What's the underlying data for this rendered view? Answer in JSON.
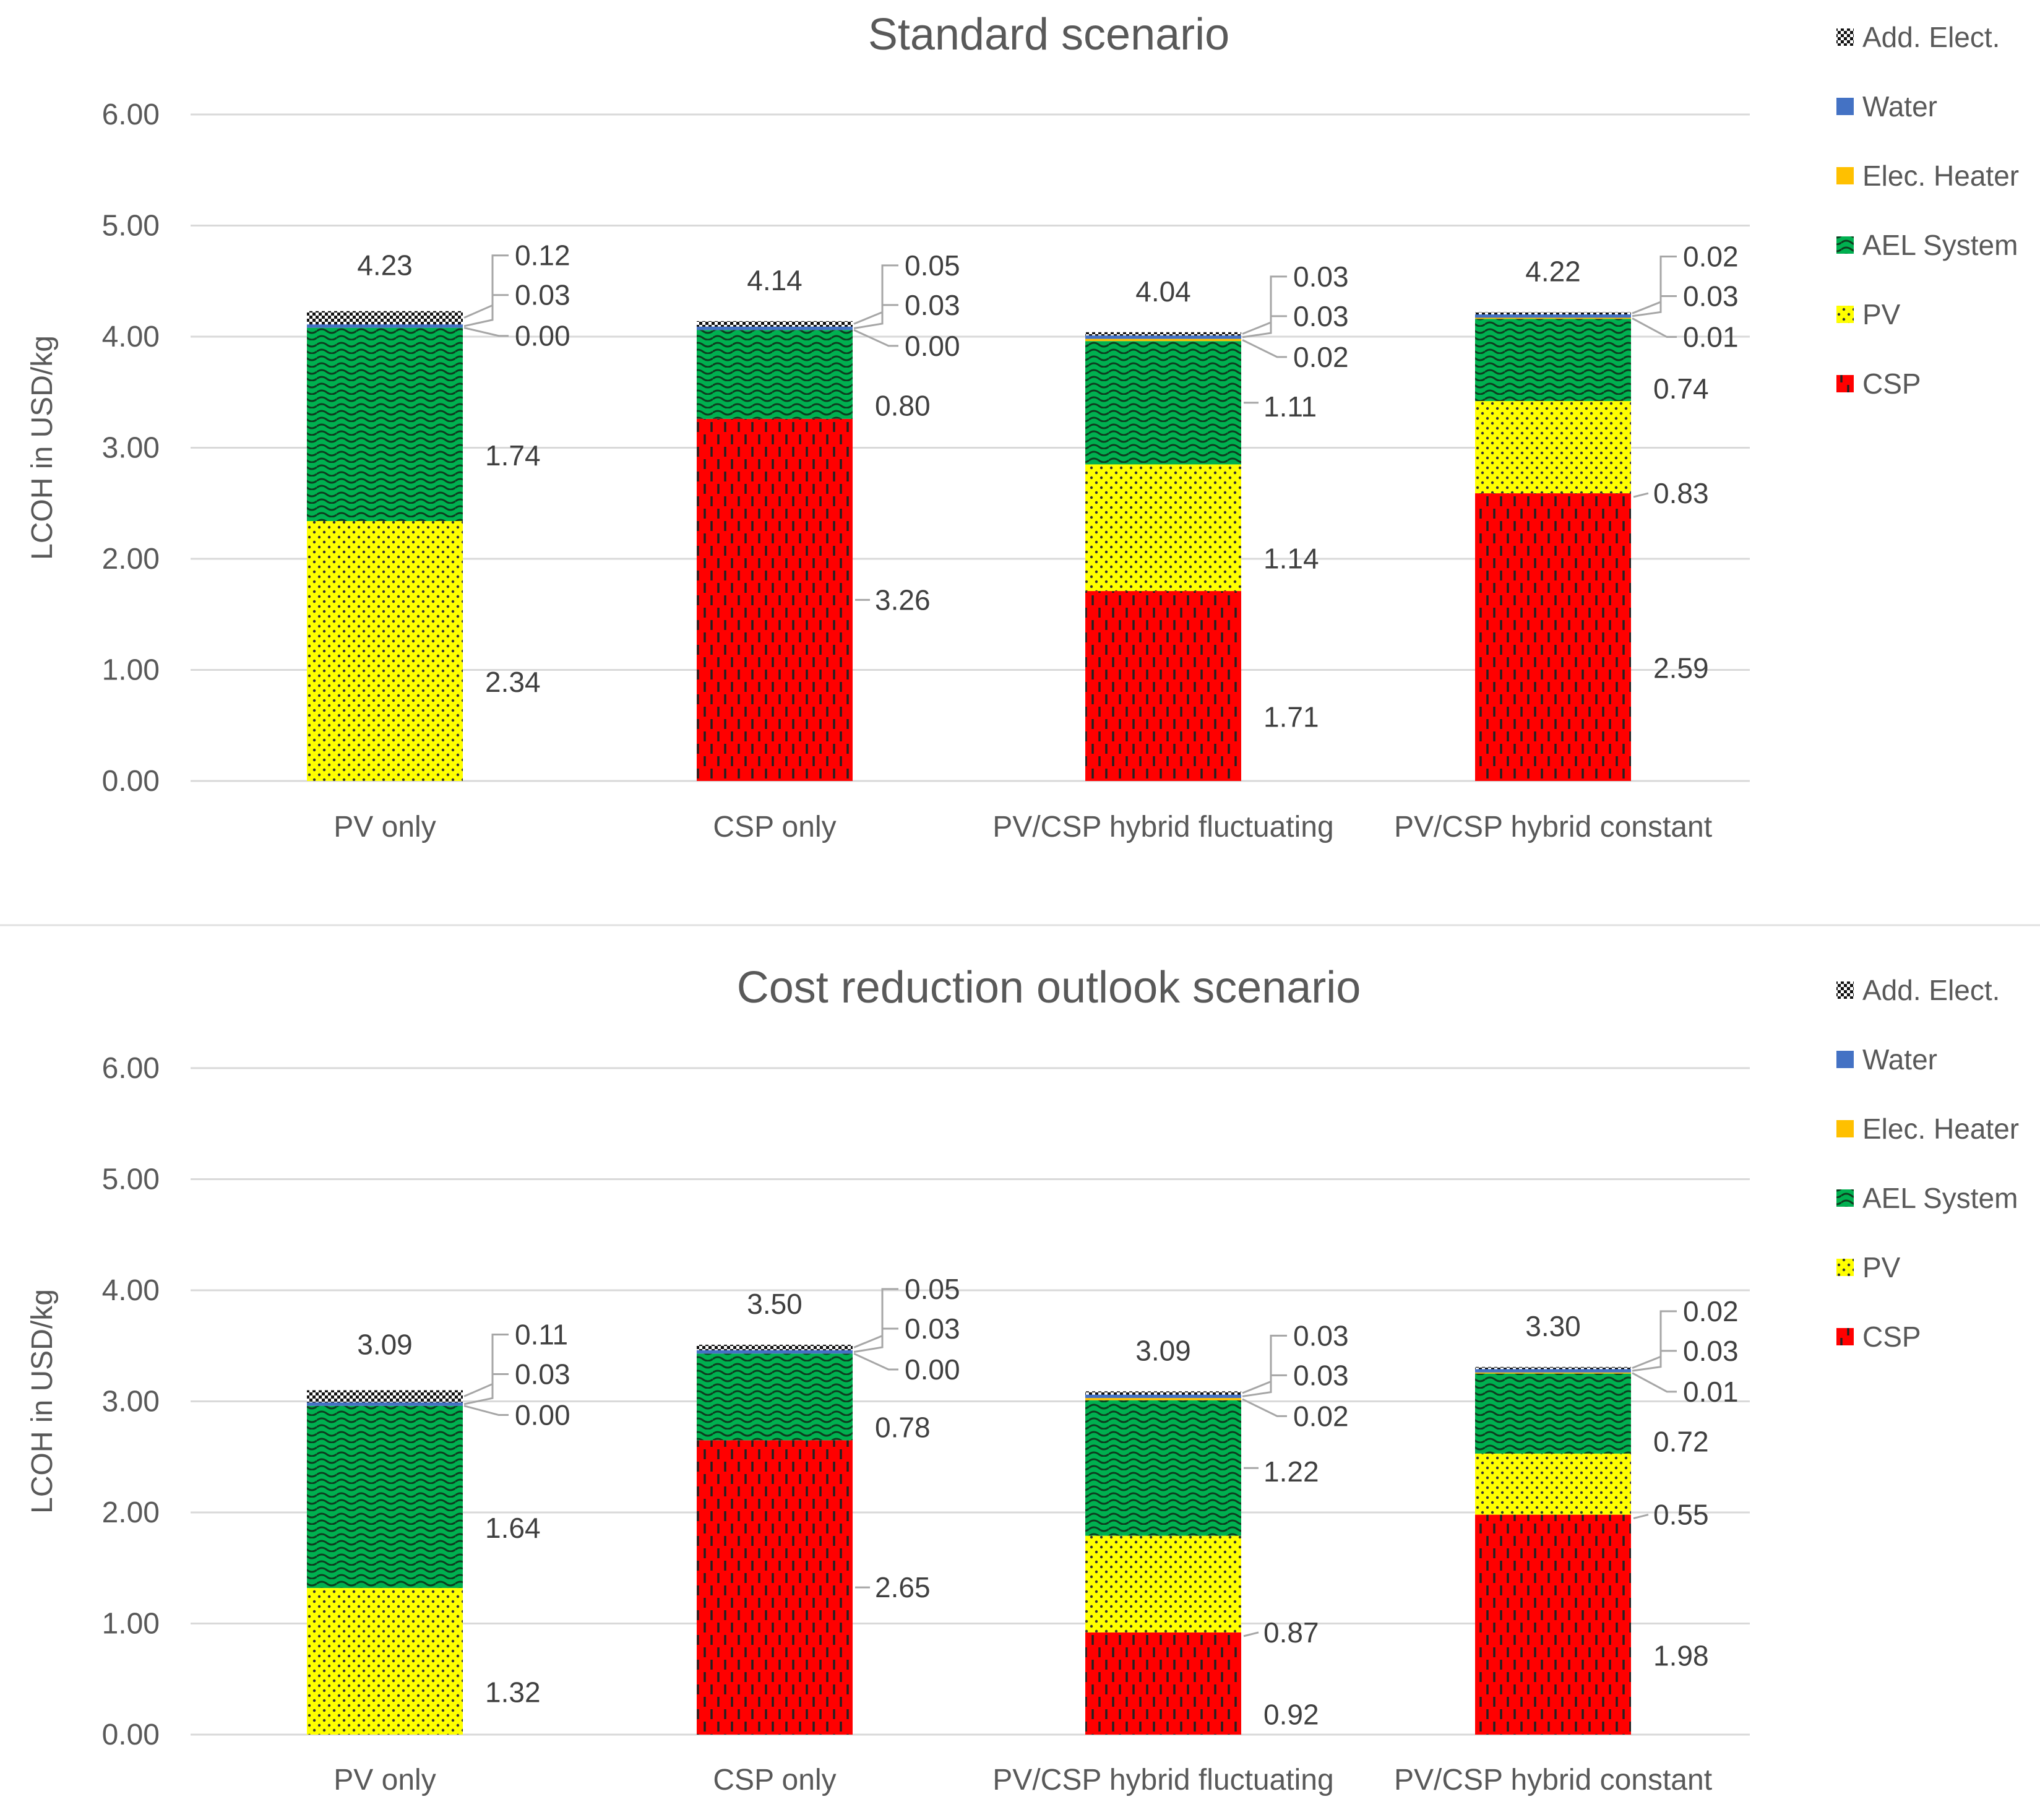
{
  "colors": {
    "Add. Elect.": "#000000",
    "Water": "#4472c4",
    "Elec. Heater": "#ffc000",
    "AEL System": "#00b050",
    "PV": "#ffff00",
    "CSP": "#ff0000"
  },
  "icons": {
    "Add. Elect.": "checker-swatch-icon",
    "Water": "square-swatch-icon",
    "Elec. Heater": "square-swatch-icon",
    "AEL System": "wave-swatch-icon",
    "PV": "dot-swatch-icon",
    "CSP": "dash-swatch-icon"
  },
  "chart_data": [
    {
      "type": "bar",
      "stacked": true,
      "title": "Standard scenario",
      "ylabel": "LCOH in USD/kg",
      "ylim": [
        0,
        6
      ],
      "yticks": [
        "0.00",
        "1.00",
        "2.00",
        "3.00",
        "4.00",
        "5.00",
        "6.00"
      ],
      "categories": [
        "PV only",
        "CSP only",
        "PV/CSP hybrid fluctuating",
        "PV/CSP hybrid constant"
      ],
      "legend": [
        "Add. Elect.",
        "Water",
        "Elec. Heater",
        "AEL System",
        "PV",
        "CSP"
      ],
      "legend_position": "right",
      "series": [
        {
          "name": "CSP",
          "values": [
            0,
            3.26,
            1.71,
            2.59
          ],
          "labels": [
            "",
            "3.26",
            "1.71",
            "2.59"
          ]
        },
        {
          "name": "PV",
          "values": [
            2.34,
            0,
            1.14,
            0.83
          ],
          "labels": [
            "2.34",
            "",
            "1.14",
            "0.83"
          ]
        },
        {
          "name": "AEL System",
          "values": [
            1.74,
            0.8,
            1.11,
            0.74
          ],
          "labels": [
            "1.74",
            "0.80",
            "1.11",
            "0.74"
          ]
        },
        {
          "name": "Elec. Heater",
          "values": [
            0.0,
            0.0,
            0.02,
            0.01
          ],
          "labels": [
            "0.00",
            "0.00",
            "0.02",
            "0.01"
          ]
        },
        {
          "name": "Water",
          "values": [
            0.03,
            0.03,
            0.03,
            0.03
          ],
          "labels": [
            "0.03",
            "0.03",
            "0.03",
            "0.03"
          ]
        },
        {
          "name": "Add. Elect.",
          "values": [
            0.12,
            0.05,
            0.03,
            0.02
          ],
          "labels": [
            "0.12",
            "0.05",
            "0.03",
            "0.02"
          ]
        }
      ],
      "totals": [
        "4.23",
        "4.14",
        "4.04",
        "4.22"
      ]
    },
    {
      "type": "bar",
      "stacked": true,
      "title": "Cost reduction outlook scenario",
      "ylabel": "LCOH in USD/kg",
      "ylim": [
        0,
        6
      ],
      "yticks": [
        "0.00",
        "1.00",
        "2.00",
        "3.00",
        "4.00",
        "5.00",
        "6.00"
      ],
      "categories": [
        "PV only",
        "CSP only",
        "PV/CSP hybrid fluctuating",
        "PV/CSP hybrid constant"
      ],
      "legend": [
        "Add. Elect.",
        "Water",
        "Elec. Heater",
        "AEL System",
        "PV",
        "CSP"
      ],
      "legend_position": "right",
      "series": [
        {
          "name": "CSP",
          "values": [
            0,
            2.65,
            0.92,
            1.98
          ],
          "labels": [
            "",
            "2.65",
            "0.92",
            "1.98"
          ]
        },
        {
          "name": "PV",
          "values": [
            1.32,
            0,
            0.87,
            0.55
          ],
          "labels": [
            "1.32",
            "",
            "0.87",
            "0.55"
          ]
        },
        {
          "name": "AEL System",
          "values": [
            1.64,
            0.78,
            1.22,
            0.72
          ],
          "labels": [
            "1.64",
            "0.78",
            "1.22",
            "0.72"
          ]
        },
        {
          "name": "Elec. Heater",
          "values": [
            0.0,
            0.0,
            0.02,
            0.01
          ],
          "labels": [
            "0.00",
            "0.00",
            "0.02",
            "0.01"
          ]
        },
        {
          "name": "Water",
          "values": [
            0.03,
            0.03,
            0.03,
            0.03
          ],
          "labels": [
            "0.03",
            "0.03",
            "0.03",
            "0.03"
          ]
        },
        {
          "name": "Add. Elect.",
          "values": [
            0.11,
            0.05,
            0.03,
            0.02
          ],
          "labels": [
            "0.11",
            "0.05",
            "0.03",
            "0.02"
          ]
        }
      ],
      "totals": [
        "3.09",
        "3.50",
        "3.09",
        "3.30"
      ]
    }
  ]
}
